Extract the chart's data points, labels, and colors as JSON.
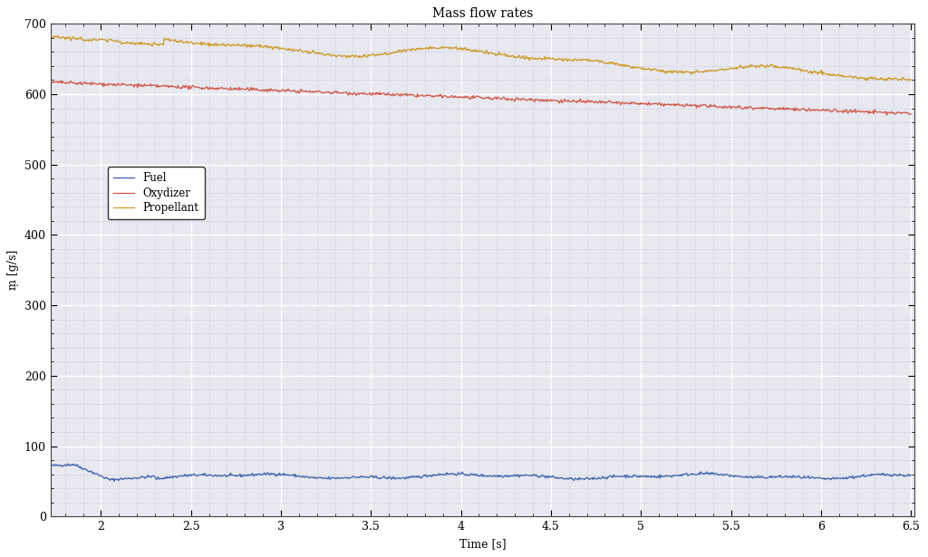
{
  "title": "Mass flow rates",
  "xlabel": "Time [s]",
  "ylabel": "ṃ [g/s]",
  "xlim": [
    1.72,
    6.52
  ],
  "ylim": [
    0,
    700
  ],
  "ytick_major": 100,
  "xtick_major": 0.5,
  "ytick_minor": 20,
  "xtick_minor": 0.1,
  "fuel_color": "#3a5faa",
  "oxydizer_color": "#cc5544",
  "propellant_color": "#cc9922",
  "background_color": "#e8e8f0",
  "grid_major_color": "#ffffff",
  "grid_minor_color": "#d8d8e8",
  "legend_labels": [
    "Fuel",
    "Oxydizer",
    "Propellant"
  ],
  "t_start": 1.72,
  "t_end": 6.5,
  "n_points": 1000,
  "title_fontsize": 10,
  "label_fontsize": 9,
  "tick_fontsize": 9
}
